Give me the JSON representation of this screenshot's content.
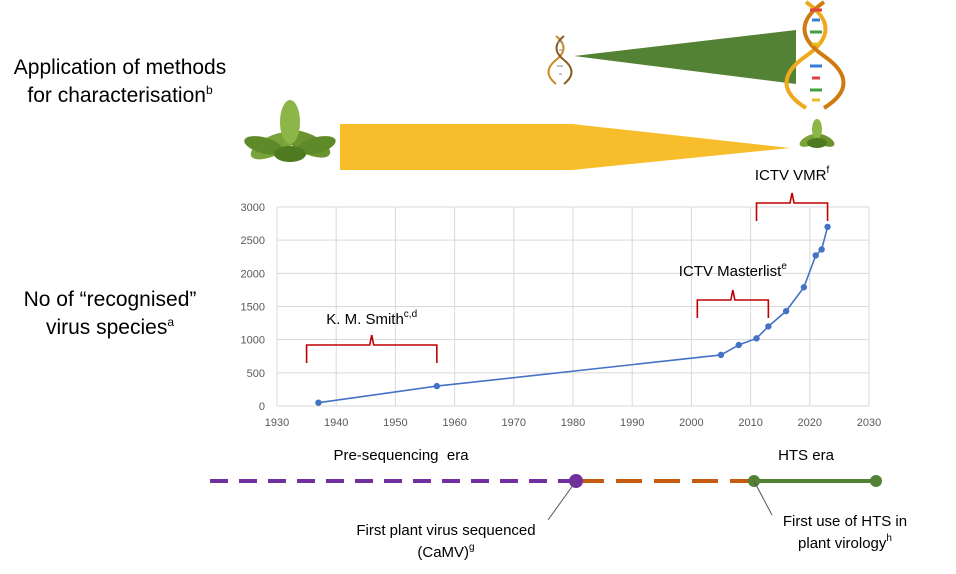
{
  "left_labels": {
    "application": {
      "text": "Application of methods for characterisation",
      "sup": "b"
    },
    "species": {
      "text": "No of “recognised” virus species",
      "sup": "a"
    }
  },
  "icons": {
    "plant": "plant-icon",
    "dna": "dna-helix-icon"
  },
  "colors": {
    "series": "#4472c4",
    "bracket": "#c00000",
    "green_wedge": "#548235",
    "yellow_wedge": "#f7bd2a",
    "timeline_pre": "#7030a0",
    "timeline_mid": "#c55a11",
    "timeline_hts": "#548235"
  },
  "chart_data": {
    "type": "line",
    "xlim": [
      1930,
      2030
    ],
    "ylim": [
      0,
      3000
    ],
    "x_ticks": [
      1930,
      1940,
      1950,
      1960,
      1970,
      1980,
      1990,
      2000,
      2010,
      2020,
      2030
    ],
    "y_ticks": [
      0,
      500,
      1000,
      1500,
      2000,
      2500,
      3000
    ],
    "grid": true,
    "series": [
      {
        "x": [
          1937,
          1957,
          2005,
          2008,
          2011,
          2013,
          2016,
          2019,
          2021,
          2022,
          2023
        ],
        "y": [
          50,
          300,
          770,
          920,
          1020,
          1200,
          1430,
          1790,
          2270,
          2360,
          2700
        ]
      }
    ],
    "annotations": [
      {
        "text": "K. M. Smith",
        "sup": "c,d",
        "range": [
          1935,
          1957
        ]
      },
      {
        "text": "ICTV Masterlist",
        "sup": "e",
        "range": [
          2001,
          2013
        ]
      },
      {
        "text": "ICTV VMR",
        "sup": "f",
        "range": [
          2011,
          2023
        ]
      }
    ]
  },
  "eras": {
    "pre": "Pre-sequencing  era",
    "hts": "HTS era"
  },
  "events": [
    {
      "line1": "First plant virus sequenced",
      "line2": "(CaMV)",
      "sup": "g"
    },
    {
      "line1": "First use of HTS in",
      "line2": "plant virology",
      "sup": "h"
    }
  ]
}
